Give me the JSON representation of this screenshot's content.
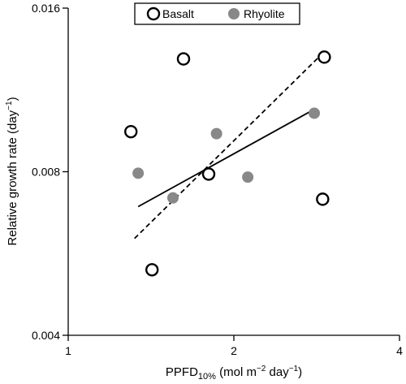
{
  "chart_data": {
    "type": "scatter",
    "x_scale": "log",
    "y_scale": "log",
    "xlim": [
      1,
      4
    ],
    "ylim": [
      0.004,
      0.016
    ],
    "x_ticks": [
      1,
      2,
      4
    ],
    "y_ticks": [
      0.004,
      0.008,
      0.016
    ],
    "x_tick_labels": [
      "1",
      "2",
      "4"
    ],
    "y_tick_labels": [
      "0.004",
      "0.008",
      "0.016"
    ],
    "xlabel": {
      "main": "PPFD",
      "sub": "10%",
      "rest": " (mol m",
      "sup": "−2",
      "end": " day",
      "sup2": "−1",
      "close": ")"
    },
    "ylabel": {
      "main": "Relative growth rate (day",
      "sup": "−1",
      "close": ")"
    },
    "legend_position": "top-center",
    "grid": false,
    "series": [
      {
        "name": "Basalt",
        "marker": "open-circle",
        "fit_line": "dashed",
        "color": "#000000",
        "points": [
          {
            "x": 1.3,
            "y": 0.00948
          },
          {
            "x": 1.42,
            "y": 0.00528
          },
          {
            "x": 1.62,
            "y": 0.0129
          },
          {
            "x": 1.8,
            "y": 0.00792
          },
          {
            "x": 2.92,
            "y": 0.013
          },
          {
            "x": 2.9,
            "y": 0.00712
          }
        ],
        "fit": [
          {
            "x": 1.32,
            "y": 0.00603
          },
          {
            "x": 2.92,
            "y": 0.0133
          }
        ]
      },
      {
        "name": "Rhyolite",
        "marker": "filled-circle",
        "fit_line": "solid",
        "color": "#888888",
        "points": [
          {
            "x": 1.34,
            "y": 0.00795
          },
          {
            "x": 1.55,
            "y": 0.00716
          },
          {
            "x": 1.86,
            "y": 0.0094
          },
          {
            "x": 2.12,
            "y": 0.00782
          },
          {
            "x": 2.8,
            "y": 0.01025
          }
        ],
        "fit": [
          {
            "x": 1.34,
            "y": 0.0069
          },
          {
            "x": 2.8,
            "y": 0.01042
          }
        ]
      }
    ]
  }
}
